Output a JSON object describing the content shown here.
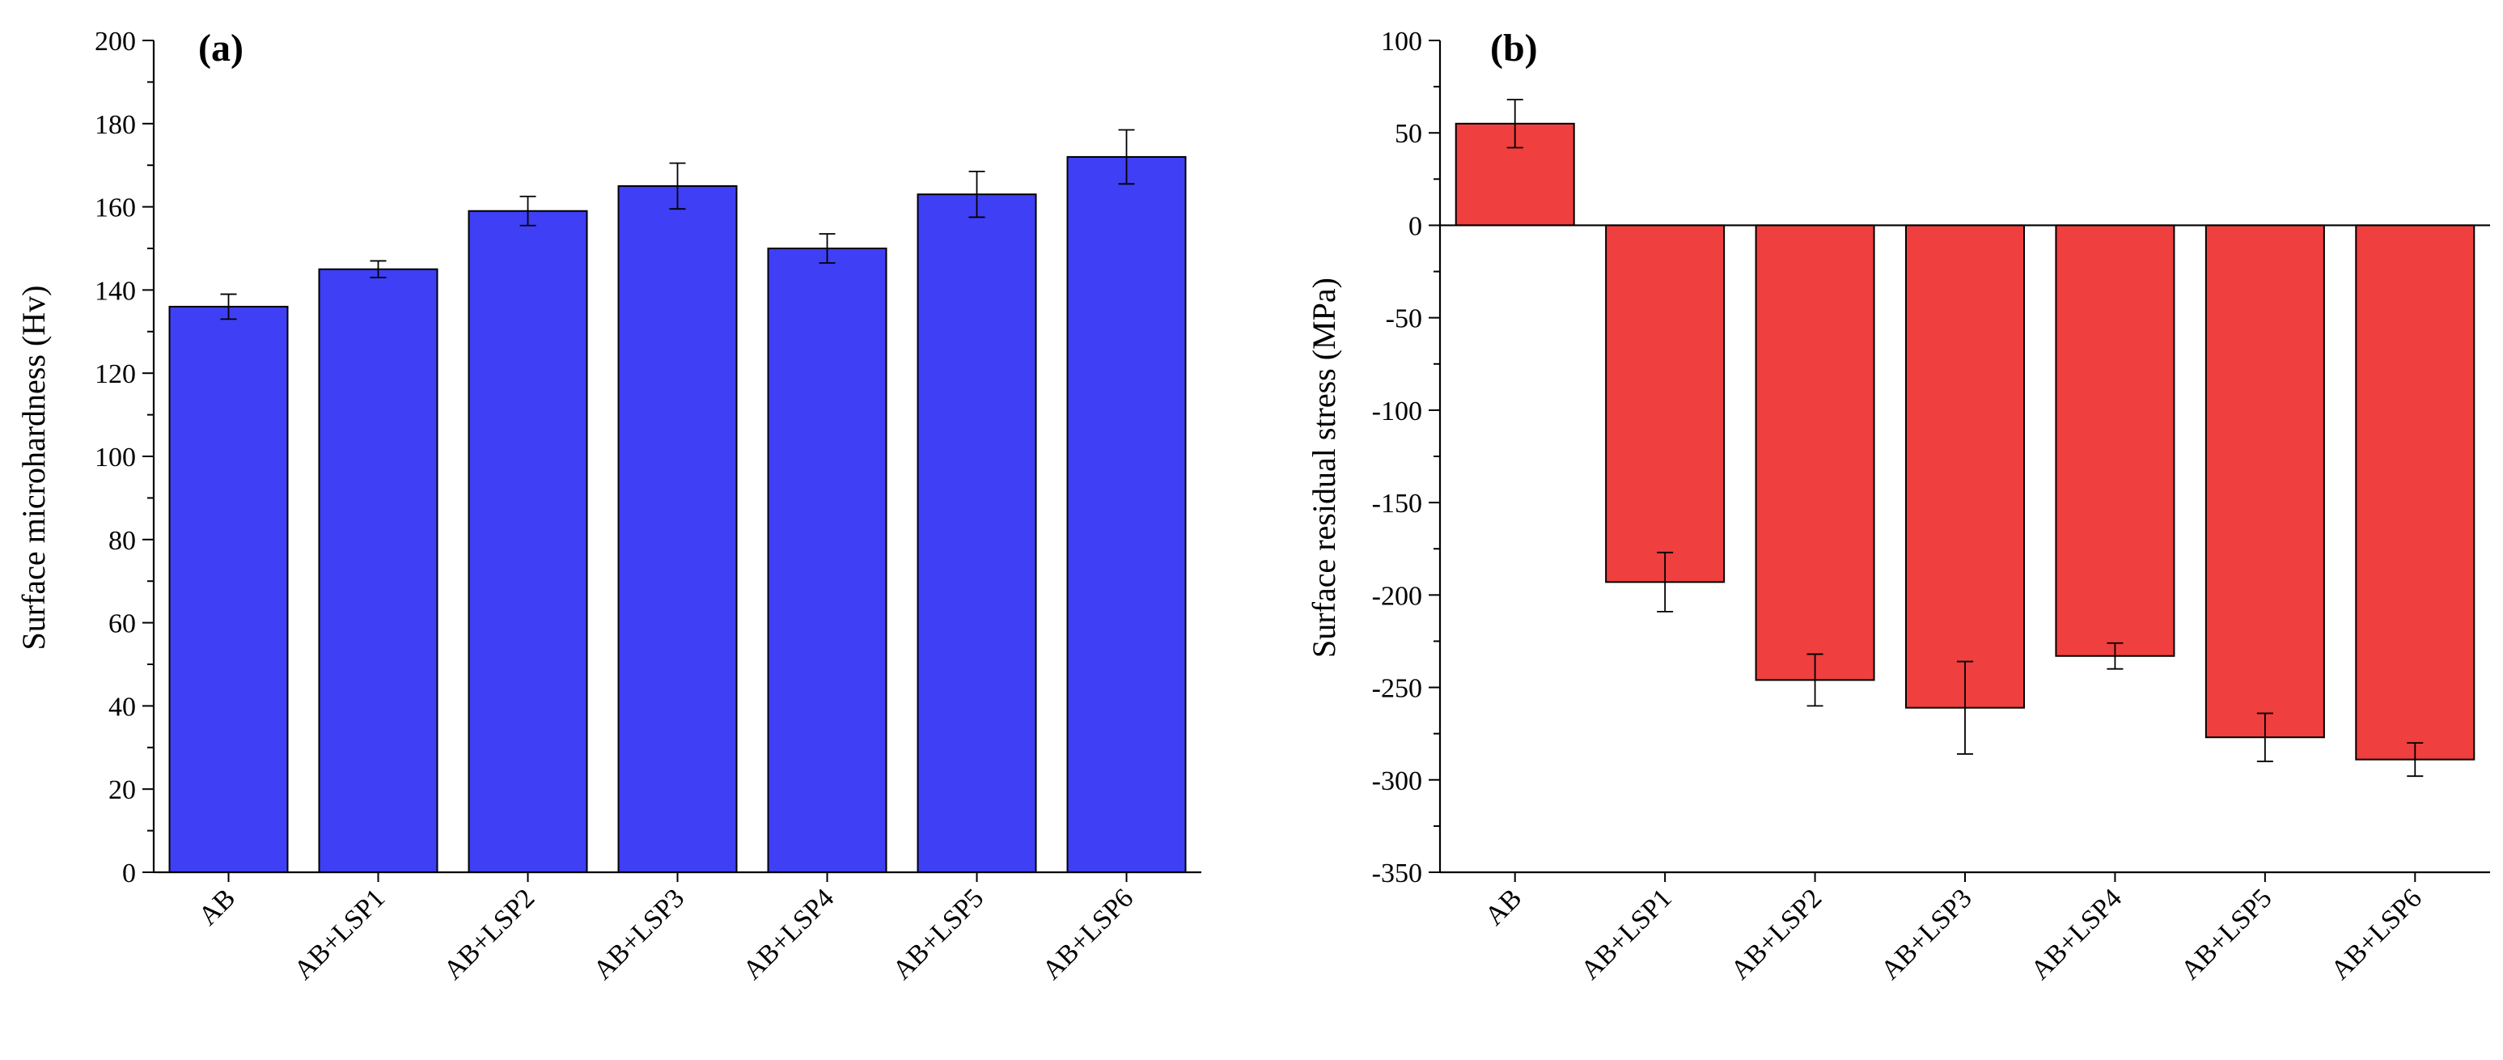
{
  "chart_data": [
    {
      "type": "bar",
      "panel_label": "(a)",
      "title": "",
      "xlabel": "",
      "ylabel": "Surface microhardness (Hv)",
      "ylim": [
        0,
        200
      ],
      "yticks": [
        0,
        20,
        40,
        60,
        80,
        100,
        120,
        140,
        160,
        180,
        200
      ],
      "categories": [
        "AB",
        "AB+LSP1",
        "AB+LSP2",
        "AB+LSP3",
        "AB+LSP4",
        "AB+LSP5",
        "AB+LSP6"
      ],
      "values": [
        136,
        145,
        159,
        165,
        150,
        163,
        172
      ],
      "errors": [
        3,
        2,
        3.5,
        5.5,
        3.5,
        5.5,
        6.5
      ],
      "bar_color": "#3f3ff5",
      "grid": false
    },
    {
      "type": "bar",
      "panel_label": "(b)",
      "title": "",
      "xlabel": "",
      "ylabel": "Surface residual stress (MPa)",
      "ylim": [
        -350,
        100
      ],
      "yticks": [
        100,
        50,
        0,
        -50,
        -100,
        -150,
        -200,
        -250,
        -300,
        -350
      ],
      "categories": [
        "AB",
        "AB+LSP1",
        "AB+LSP2",
        "AB+LSP3",
        "AB+LSP4",
        "AB+LSP5",
        "AB+LSP6"
      ],
      "values": [
        55,
        -193,
        -246,
        -261,
        -233,
        -277,
        -289
      ],
      "errors": [
        13,
        16,
        14,
        25,
        7,
        13,
        9
      ],
      "bar_color": "#ef3f3f",
      "grid": false
    }
  ]
}
